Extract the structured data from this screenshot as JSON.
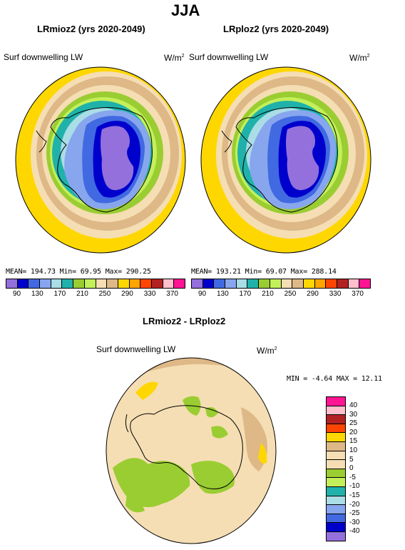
{
  "main_title": "JJA",
  "panels": [
    {
      "title": "LRmioz2 (yrs 2020-2049)",
      "variable": "Surf downwelling LW",
      "units": "W/m",
      "units_sup": "2",
      "stats": "MEAN= 194.73   Min=   69.95   Max= 290.25"
    },
    {
      "title": "LRploz2 (yrs 2020-2049)",
      "variable": "Surf downwelling LW",
      "units": "W/m",
      "units_sup": "2",
      "stats": "MEAN= 193.21   Min=   69.07   Max= 288.14"
    }
  ],
  "colorbar_top": {
    "colors": [
      "#9370db",
      "#0000cd",
      "#4169e1",
      "#87a6ee",
      "#aadde6",
      "#20b2aa",
      "#9acd32",
      "#c3f05a",
      "#f5deb3",
      "#deb887",
      "#ffd700",
      "#ffa500",
      "#ff4500",
      "#b22222",
      "#ffc0cb",
      "#ff1493"
    ],
    "ticks": [
      "90",
      "130",
      "170",
      "210",
      "250",
      "290",
      "330",
      "370"
    ]
  },
  "diff_panel": {
    "title": "LRmioz2 - LRploz2",
    "variable": "Surf downwelling LW",
    "units": "W/m",
    "units_sup": "2",
    "stats": "MIN =   -4.64  MAX =   12.11"
  },
  "colorbar_diff": {
    "colors": [
      "#ff1493",
      "#ffc0cb",
      "#b22222",
      "#ff4500",
      "#ffd700",
      "#deb887",
      "#f5deb3",
      "#f5deb3",
      "#9acd32",
      "#c3f05a",
      "#20b2aa",
      "#aadde6",
      "#87a6ee",
      "#4169e1",
      "#0000cd",
      "#9370db"
    ],
    "ticks": [
      "40",
      "30",
      "25",
      "20",
      "15",
      "10",
      "5",
      "0",
      "-5",
      "-10",
      "-15",
      "-20",
      "-25",
      "-30",
      "-40"
    ]
  }
}
